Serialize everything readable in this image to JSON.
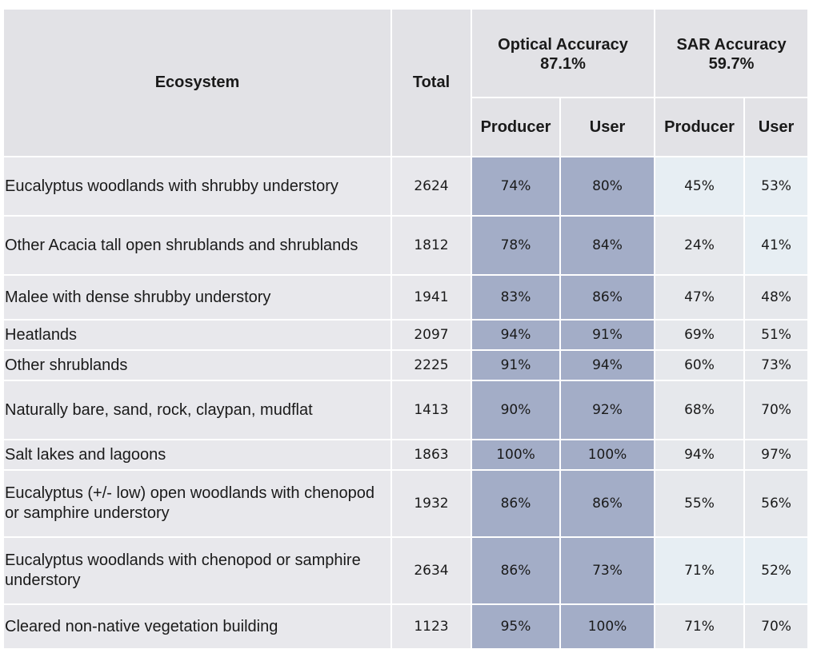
{
  "header": {
    "ecosystem": "Ecosystem",
    "total": "Total",
    "optical_title": "Optical Accuracy",
    "optical_value": "87.1%",
    "sar_title": "SAR Accuracy",
    "sar_value": "59.7%",
    "producer": "Producer",
    "user": "User"
  },
  "rows": [
    {
      "ecosystem": "Eucalyptus woodlands with shrubby understory",
      "total": "2624",
      "opt_producer": "74%",
      "opt_user": "80%",
      "sar_producer": "45%",
      "sar_user": "53%"
    },
    {
      "ecosystem": "Other Acacia tall open shrublands and shrublands",
      "total": "1812",
      "opt_producer": "78%",
      "opt_user": "84%",
      "sar_producer": "24%",
      "sar_user": "41%"
    },
    {
      "ecosystem": "Malee with dense shrubby understory",
      "total": "1941",
      "opt_producer": "83%",
      "opt_user": "86%",
      "sar_producer": "47%",
      "sar_user": "48%"
    },
    {
      "ecosystem": "Heatlands",
      "total": "2097",
      "opt_producer": "94%",
      "opt_user": "91%",
      "sar_producer": "69%",
      "sar_user": "51%"
    },
    {
      "ecosystem": "Other shrublands",
      "total": "2225",
      "opt_producer": "91%",
      "opt_user": "94%",
      "sar_producer": "60%",
      "sar_user": "73%"
    },
    {
      "ecosystem": "Naturally bare, sand, rock, claypan, mudflat",
      "total": "1413",
      "opt_producer": "90%",
      "opt_user": "92%",
      "sar_producer": "68%",
      "sar_user": "70%"
    },
    {
      "ecosystem": "Salt lakes and lagoons",
      "total": "1863",
      "opt_producer": "100%",
      "opt_user": "100%",
      "sar_producer": "94%",
      "sar_user": "97%"
    },
    {
      "ecosystem": "Eucalyptus (+/- low) open woodlands with chenopod or samphire understory",
      "total": "1932",
      "opt_producer": "86%",
      "opt_user": "86%",
      "sar_producer": "55%",
      "sar_user": "56%"
    },
    {
      "ecosystem": "Eucalyptus woodlands with chenopod or samphire understory",
      "total": "2634",
      "opt_producer": "86%",
      "opt_user": "73%",
      "sar_producer": "71%",
      "sar_user": "52%"
    },
    {
      "ecosystem": "Cleared non-native vegetation building",
      "total": "1123",
      "opt_producer": "95%",
      "opt_user": "100%",
      "sar_producer": "71%",
      "sar_user": "70%"
    }
  ],
  "colors": {
    "optical_cells": "#a3adc7",
    "sar_cells": "#e6e8ec",
    "header": "#e2e2e6",
    "ecosystem_cells": "#e8e8ec"
  }
}
